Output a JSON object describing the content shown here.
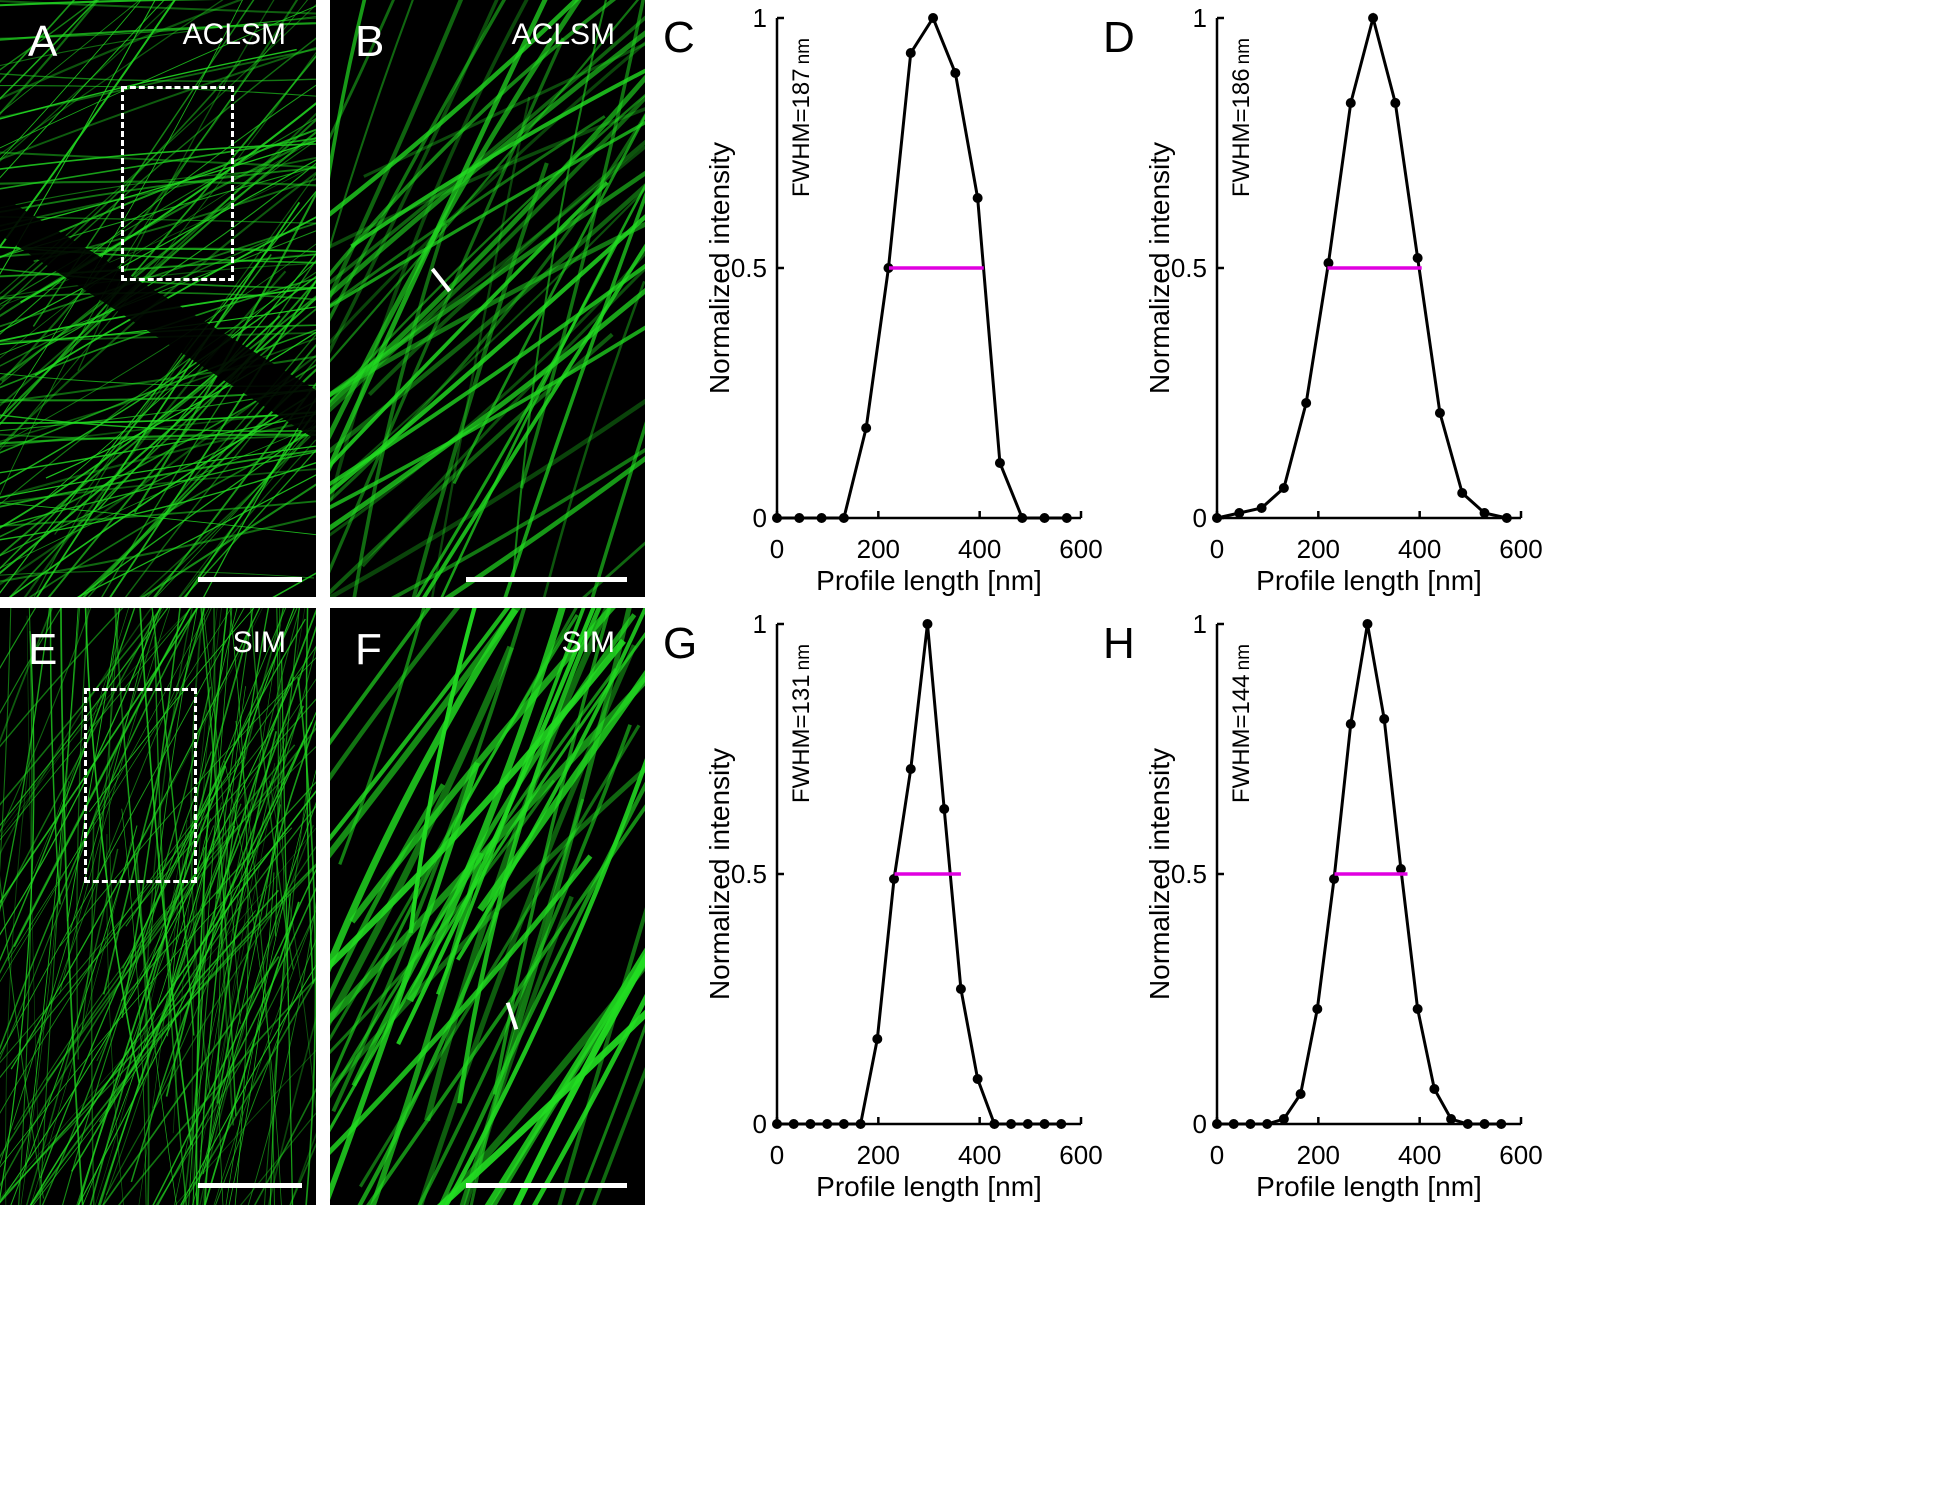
{
  "figure": {
    "panels": [
      {
        "id": "A",
        "letter": "A",
        "method": "ACLSM"
      },
      {
        "id": "B",
        "letter": "B",
        "method": "ACLSM"
      },
      {
        "id": "E",
        "letter": "E",
        "method": "SIM"
      },
      {
        "id": "F",
        "letter": "F",
        "method": "SIM"
      }
    ]
  },
  "colors": {
    "curve": "#000000",
    "fwhm": "#e000e0",
    "filament": "#22dd22"
  },
  "chart_data": [
    {
      "panel": "C",
      "type": "line",
      "xlabel": "Profile length [nm]",
      "ylabel": "Normalized intensity",
      "annotation": {
        "label": "FWHM=187",
        "unit": "nm"
      },
      "xlim": [
        0,
        600
      ],
      "ylim": [
        0,
        1
      ],
      "xticks": [
        0,
        200,
        400,
        600
      ],
      "yticks": [
        0,
        0.5,
        1
      ],
      "x": [
        0,
        44,
        88,
        132,
        176,
        220,
        264,
        308,
        352,
        396,
        440,
        484,
        528,
        572
      ],
      "y": [
        0,
        0,
        0,
        0,
        0.18,
        0.5,
        0.93,
        1.0,
        0.89,
        0.64,
        0.11,
        0,
        0,
        0
      ],
      "fwhm_segment": [
        221,
        408
      ]
    },
    {
      "panel": "D",
      "type": "line",
      "xlabel": "Profile length [nm]",
      "ylabel": "Normalized intensity",
      "annotation": {
        "label": "FWHM=186",
        "unit": "nm"
      },
      "xlim": [
        0,
        600
      ],
      "ylim": [
        0,
        1
      ],
      "xticks": [
        0,
        200,
        400,
        600
      ],
      "yticks": [
        0,
        0.5,
        1
      ],
      "x": [
        0,
        44,
        88,
        132,
        176,
        220,
        264,
        308,
        352,
        396,
        440,
        484,
        528,
        572
      ],
      "y": [
        0,
        0.01,
        0.02,
        0.06,
        0.23,
        0.51,
        0.83,
        1.0,
        0.83,
        0.52,
        0.21,
        0.05,
        0.01,
        0
      ],
      "fwhm_segment": [
        218,
        404
      ]
    },
    {
      "panel": "G",
      "type": "line",
      "xlabel": "Profile length [nm]",
      "ylabel": "Normalized intensity",
      "annotation": {
        "label": "FWHM=131",
        "unit": "nm"
      },
      "xlim": [
        0,
        600
      ],
      "ylim": [
        0,
        1
      ],
      "xticks": [
        0,
        200,
        400,
        600
      ],
      "yticks": [
        0,
        0.5,
        1
      ],
      "x": [
        0,
        33,
        66,
        99,
        132,
        165,
        198,
        231,
        264,
        297,
        330,
        363,
        396,
        429,
        462,
        495,
        528,
        561
      ],
      "y": [
        0,
        0,
        0,
        0,
        0,
        0,
        0.17,
        0.49,
        0.71,
        1.0,
        0.63,
        0.27,
        0.09,
        0,
        0,
        0,
        0,
        0
      ],
      "fwhm_segment": [
        232,
        363
      ]
    },
    {
      "panel": "H",
      "type": "line",
      "xlabel": "Profile length [nm]",
      "ylabel": "Normalized intensity",
      "annotation": {
        "label": "FWHM=144",
        "unit": "nm"
      },
      "xlim": [
        0,
        600
      ],
      "ylim": [
        0,
        1
      ],
      "xticks": [
        0,
        200,
        400,
        600
      ],
      "yticks": [
        0,
        0.5,
        1
      ],
      "x": [
        0,
        33,
        66,
        99,
        132,
        165,
        198,
        231,
        264,
        297,
        330,
        363,
        396,
        429,
        462,
        495,
        528,
        561
      ],
      "y": [
        0,
        0,
        0,
        0,
        0.01,
        0.06,
        0.23,
        0.49,
        0.8,
        1.0,
        0.81,
        0.51,
        0.23,
        0.07,
        0.01,
        0,
        0,
        0
      ],
      "fwhm_segment": [
        232,
        376
      ]
    }
  ]
}
